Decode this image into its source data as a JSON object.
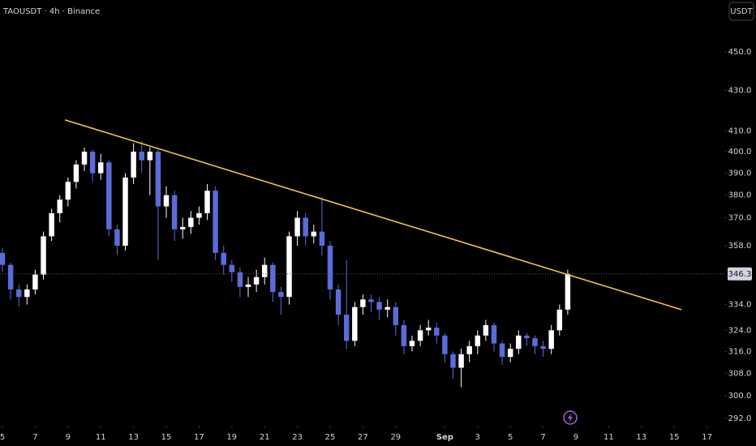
{
  "chart_data": {
    "type": "candlestick",
    "title": "TAOUSDT · 4h · Binance",
    "currency": "USDT",
    "x": [
      0,
      0.5,
      1,
      1.5,
      2,
      2.5,
      3,
      3.5,
      4,
      4.5,
      5,
      5.5,
      6,
      6.5,
      7,
      7.5,
      8,
      8.5,
      9,
      9.5,
      10,
      10.5,
      11,
      11.5,
      12,
      12.5,
      13,
      13.5,
      14,
      14.5,
      15,
      15.5,
      16,
      16.5,
      17,
      17.5,
      18,
      18.5,
      19,
      19.5,
      20,
      20.5,
      21,
      21.5,
      22,
      22.5,
      23,
      23.5,
      24,
      24.5,
      25,
      25.5,
      26,
      26.5,
      27,
      27.5,
      28,
      28.5,
      29,
      29.5,
      30,
      30.5,
      31,
      31.5,
      32,
      32.5,
      33,
      33.5,
      34,
      34.5
    ],
    "open": [
      355,
      350,
      340,
      337,
      340,
      346,
      362,
      372,
      378,
      386,
      394,
      400,
      390,
      395,
      365,
      358,
      388,
      400,
      396,
      400,
      375,
      380,
      365,
      366,
      370,
      372,
      382,
      355,
      350,
      347,
      341,
      342,
      345,
      350,
      339,
      337,
      362,
      370,
      362,
      364,
      358,
      340,
      330,
      320,
      333,
      336,
      335,
      332,
      333,
      326,
      318,
      320,
      324,
      325,
      322,
      315,
      310,
      315,
      318,
      322,
      326,
      319,
      314,
      317,
      322,
      321,
      318,
      317,
      324,
      332
    ],
    "high": [
      357,
      351,
      342,
      342,
      348,
      364,
      374,
      380,
      388,
      396,
      402,
      401,
      399,
      396,
      367,
      390,
      404,
      405,
      402,
      401,
      384,
      382,
      370,
      373,
      375,
      385,
      384,
      358,
      352,
      349,
      345,
      348,
      353,
      351,
      341,
      364,
      373,
      372,
      367,
      379,
      360,
      342,
      352,
      335,
      338,
      338,
      337,
      336,
      335,
      328,
      322,
      326,
      328,
      327,
      323,
      316,
      317,
      320,
      324,
      328,
      327,
      320,
      319,
      324,
      323,
      322,
      320,
      326,
      334,
      348
    ],
    "low": [
      347,
      336,
      333,
      334,
      338,
      344,
      360,
      368,
      375,
      383,
      391,
      386,
      387,
      362,
      354,
      356,
      385,
      390,
      380,
      352,
      370,
      360,
      361,
      363,
      367,
      369,
      352,
      346,
      343,
      337,
      337,
      339,
      342,
      335,
      330,
      334,
      358,
      358,
      359,
      354,
      336,
      326,
      317,
      318,
      330,
      331,
      328,
      329,
      322,
      315,
      316,
      318,
      322,
      319,
      312,
      306,
      303,
      312,
      315,
      320,
      316,
      311,
      312,
      315,
      318,
      315,
      314,
      315,
      322,
      330
    ],
    "close": [
      350,
      340,
      337,
      340,
      346,
      362,
      372,
      378,
      386,
      394,
      400,
      390,
      395,
      365,
      358,
      388,
      400,
      396,
      400,
      375,
      380,
      365,
      366,
      370,
      372,
      382,
      355,
      350,
      347,
      341,
      342,
      345,
      350,
      339,
      337,
      362,
      370,
      362,
      364,
      358,
      340,
      330,
      320,
      333,
      336,
      335,
      332,
      333,
      326,
      318,
      320,
      324,
      325,
      322,
      315,
      310,
      315,
      318,
      322,
      326,
      319,
      314,
      317,
      322,
      321,
      318,
      317,
      324,
      332,
      346.3
    ],
    "up_color": "#ffffff",
    "down_color": "#5b6bd8",
    "log_scale": true,
    "grid": false,
    "ylim": [
      289.5,
      478.4
    ],
    "yticks": [
      {
        "value": 450,
        "label": "450.0"
      },
      {
        "value": 430,
        "label": "430.0"
      },
      {
        "value": 410,
        "label": "410.0"
      },
      {
        "value": 400,
        "label": "400.0"
      },
      {
        "value": 390,
        "label": "390.0"
      },
      {
        "value": 380,
        "label": "380.0"
      },
      {
        "value": 370,
        "label": "370.0"
      },
      {
        "value": 358,
        "label": "358.0"
      },
      {
        "value": 334,
        "label": "334.0"
      },
      {
        "value": 324,
        "label": "324.0"
      },
      {
        "value": 316,
        "label": "316.0"
      },
      {
        "value": 308,
        "label": "308.0"
      },
      {
        "value": 300,
        "label": "300.0"
      },
      {
        "value": 292,
        "label": "292.0"
      }
    ],
    "xlim": [
      -0.15,
      44.06
    ],
    "xticks": [
      {
        "value": 0,
        "label": "5"
      },
      {
        "value": 2,
        "label": "7"
      },
      {
        "value": 4,
        "label": "9"
      },
      {
        "value": 6,
        "label": "11"
      },
      {
        "value": 8,
        "label": "13"
      },
      {
        "value": 10,
        "label": "15"
      },
      {
        "value": 12,
        "label": "17"
      },
      {
        "value": 14,
        "label": "19"
      },
      {
        "value": 16,
        "label": "21"
      },
      {
        "value": 18,
        "label": "23"
      },
      {
        "value": 20,
        "label": "25"
      },
      {
        "value": 22,
        "label": "27"
      },
      {
        "value": 24,
        "label": "29"
      },
      {
        "value": 27,
        "label": "Sep"
      },
      {
        "value": 29,
        "label": "3"
      },
      {
        "value": 31,
        "label": "5"
      },
      {
        "value": 33,
        "label": "7"
      },
      {
        "value": 35,
        "label": "9"
      },
      {
        "value": 37,
        "label": "11"
      },
      {
        "value": 39,
        "label": "13"
      },
      {
        "value": 41,
        "label": "15"
      },
      {
        "value": 43,
        "label": "17"
      }
    ],
    "trendline": {
      "x": [
        3.81,
        41.44
      ],
      "y": [
        415.3,
        332.0
      ],
      "color": "#f5c542"
    },
    "current_price": 346.3
  }
}
